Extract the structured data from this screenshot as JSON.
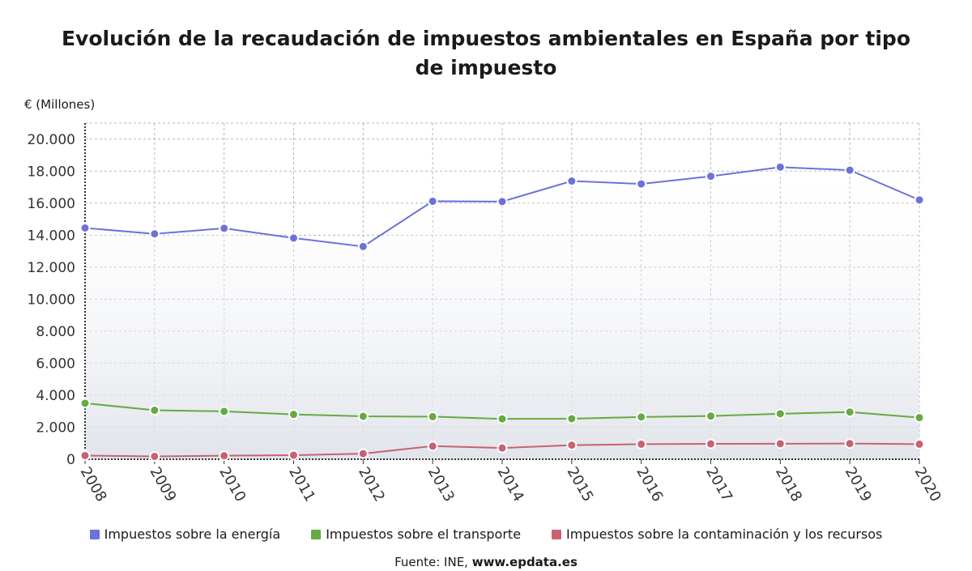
{
  "title": "Evolución de la recaudación de impuestos ambientales en España por tipo de impuesto",
  "source": {
    "prefix": "Fuente: INE, ",
    "site": "www.epdata.es"
  },
  "chart_data": {
    "type": "line",
    "ylabel": "€ (Millones)",
    "ylim": [
      0,
      21000
    ],
    "yticks": [
      0,
      2000,
      4000,
      6000,
      8000,
      10000,
      12000,
      14000,
      16000,
      18000,
      20000
    ],
    "ytick_labels": [
      "0",
      "2.000",
      "4.000",
      "6.000",
      "8.000",
      "10.000",
      "12.000",
      "14.000",
      "16.000",
      "18.000",
      "20.000"
    ],
    "x": [
      "2008",
      "2009",
      "2010",
      "2011",
      "2012",
      "2013",
      "2014",
      "2015",
      "2016",
      "2017",
      "2018",
      "2019",
      "2020"
    ],
    "grid": true,
    "legend_position": "bottom",
    "series": [
      {
        "name": "Impuestos sobre la energía",
        "color": "#6b72d9",
        "values": [
          14450,
          14080,
          14430,
          13820,
          13290,
          16120,
          16100,
          17380,
          17200,
          17680,
          18250,
          18060,
          16200
        ]
      },
      {
        "name": "Impuestos sobre el transporte",
        "color": "#66aa44",
        "values": [
          3500,
          3060,
          2990,
          2800,
          2680,
          2660,
          2520,
          2530,
          2640,
          2700,
          2840,
          2950,
          2600
        ]
      },
      {
        "name": "Impuestos sobre la contaminación y los recursos",
        "color": "#c86272",
        "values": [
          230,
          180,
          220,
          250,
          350,
          820,
          700,
          880,
          940,
          960,
          970,
          980,
          940
        ]
      }
    ]
  }
}
